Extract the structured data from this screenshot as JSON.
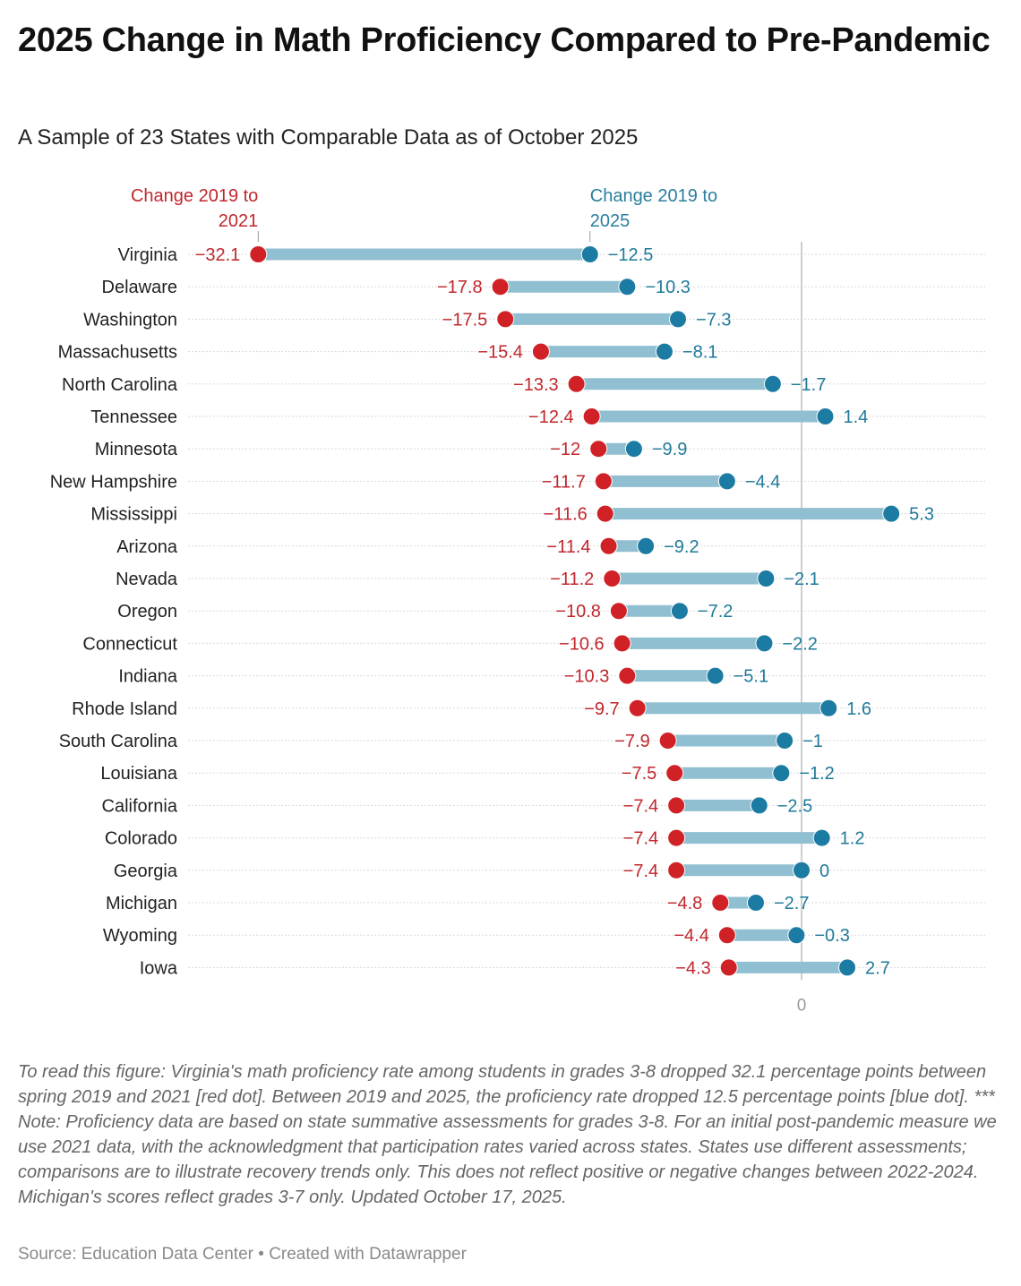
{
  "header": {
    "title": "2025 Change in Math Proficiency Compared to Pre-Pandemic",
    "subtitle": "A Sample of 23 States with Comparable Data as of October 2025"
  },
  "colors": {
    "red": "#d02126",
    "blue": "#1c7ba2",
    "bar": "#8fbfd0",
    "red_text": "#c0272d",
    "blue_text": "#1f7a9a",
    "zero_line": "#bdbdbd",
    "grid": "#d8d8d8"
  },
  "chart_data": {
    "type": "dumbbell",
    "title": "2025 Change in Math Proficiency Compared to Pre-Pandemic",
    "subtitle": "A Sample of 23 States with Comparable Data as of October 2025",
    "xlabel": "",
    "ylabel": "",
    "xlim": [
      -32.1,
      5.3
    ],
    "x_ticks": [
      "0"
    ],
    "grid": "dotted horizontal row lines",
    "legend": {
      "placement": "top, above first row",
      "entries": [
        {
          "name": "Change 2019 to 2021",
          "label_lines": [
            "Change 2019 to",
            "2021"
          ],
          "color": "#d02126"
        },
        {
          "name": "Change 2019 to 2025",
          "label_lines": [
            "Change 2019 to",
            "2025"
          ],
          "color": "#1c7ba2"
        }
      ]
    },
    "categories": [
      "Virginia",
      "Delaware",
      "Washington",
      "Massachusetts",
      "North Carolina",
      "Tennessee",
      "Minnesota",
      "New Hampshire",
      "Mississippi",
      "Arizona",
      "Nevada",
      "Oregon",
      "Connecticut",
      "Indiana",
      "Rhode Island",
      "South Carolina",
      "Louisiana",
      "California",
      "Colorado",
      "Georgia",
      "Michigan",
      "Wyoming",
      "Iowa"
    ],
    "series": [
      {
        "name": "Change 2019 to 2021",
        "values": [
          -32.1,
          -17.8,
          -17.5,
          -15.4,
          -13.3,
          -12.4,
          -12,
          -11.7,
          -11.6,
          -11.4,
          -11.2,
          -10.8,
          -10.6,
          -10.3,
          -9.7,
          -7.9,
          -7.5,
          -7.4,
          -7.4,
          -7.4,
          -4.8,
          -4.4,
          -4.3
        ]
      },
      {
        "name": "Change 2019 to 2025",
        "values": [
          -12.5,
          -10.3,
          -7.3,
          -8.1,
          -1.7,
          1.4,
          -9.9,
          -4.4,
          5.3,
          -9.2,
          -2.1,
          -7.2,
          -2.2,
          -5.1,
          1.6,
          -1,
          -1.2,
          -2.5,
          1.2,
          0,
          -2.7,
          -0.3,
          2.7
        ]
      }
    ],
    "labels_2021": [
      "−32.1",
      "−17.8",
      "−17.5",
      "−15.4",
      "−13.3",
      "−12.4",
      "−12",
      "−11.7",
      "−11.6",
      "−11.4",
      "−11.2",
      "−10.8",
      "−10.6",
      "−10.3",
      "−9.7",
      "−7.9",
      "−7.5",
      "−7.4",
      "−7.4",
      "−7.4",
      "−4.8",
      "−4.4",
      "−4.3"
    ],
    "labels_2025": [
      "−12.5",
      "−10.3",
      "−7.3",
      "−8.1",
      "−1.7",
      "1.4",
      "−9.9",
      "−4.4",
      "5.3",
      "−9.2",
      "−2.1",
      "−7.2",
      "−2.2",
      "−5.1",
      "1.6",
      "−1",
      "−1.2",
      "−2.5",
      "1.2",
      "0",
      "−2.7",
      "−0.3",
      "2.7"
    ]
  },
  "footer": {
    "notes": "To read this figure: Virginia's math proficiency rate among students in grades 3-8 dropped 32.1 percentage points between spring 2019 and 2021 [red dot]. Between 2019 and 2025, the proficiency rate dropped 12.5 percentage points [blue dot]. *** Note: Proficiency data are based on state summative assessments for grades 3-8. For an initial post-pandemic measure we use 2021 data, with the acknowledgment that participation rates varied across states. States use different assessments; comparisons are to illustrate recovery trends only. This does not reflect positive or negative changes between 2022-2024. Michigan's scores reflect grades 3-7 only. Updated October 17, 2025.",
    "source": "Source: Education Data Center • Created with Datawrapper"
  }
}
